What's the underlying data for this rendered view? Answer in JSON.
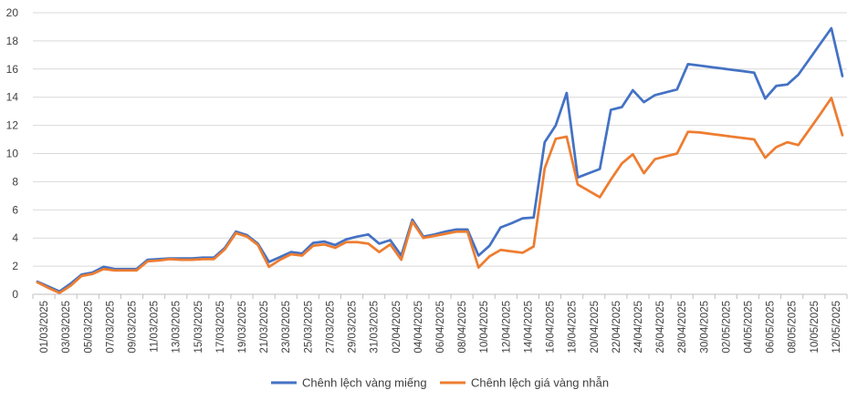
{
  "chart_data": {
    "type": "line",
    "title": "",
    "xlabel": "",
    "ylabel": "",
    "ylim": [
      0,
      20
    ],
    "yticks": [
      0,
      2,
      4,
      6,
      8,
      10,
      12,
      14,
      16,
      18,
      20
    ],
    "grid": "horizontal",
    "legend_position": "bottom",
    "xtick_labels": [
      "01/03/2025",
      "03/03/2025",
      "05/03/2025",
      "07/03/2025",
      "09/03/2025",
      "11/03/2025",
      "13/03/2025",
      "15/03/2025",
      "17/03/2025",
      "19/03/2025",
      "21/03/2025",
      "23/03/2025",
      "25/03/2025",
      "27/03/2025",
      "29/03/2025",
      "31/03/2025",
      "02/04/2025",
      "04/04/2025",
      "06/04/2025",
      "08/04/2025",
      "10/04/2025",
      "12/04/2025",
      "14/04/2025",
      "16/04/2025",
      "18/04/2025",
      "20/04/2025",
      "22/04/2025",
      "24/04/2025",
      "26/04/2025",
      "28/04/2025",
      "30/04/2025",
      "02/05/2025",
      "04/05/2025",
      "06/05/2025",
      "08/05/2025",
      "10/05/2025",
      "12/05/2025"
    ],
    "x": [
      "01/03",
      "02/03",
      "03/03",
      "04/03",
      "05/03",
      "06/03",
      "07/03",
      "08/03",
      "09/03",
      "10/03",
      "11/03",
      "12/03",
      "13/03",
      "14/03",
      "15/03",
      "16/03",
      "17/03",
      "18/03",
      "19/03",
      "20/03",
      "21/03",
      "22/03",
      "23/03",
      "24/03",
      "25/03",
      "26/03",
      "27/03",
      "28/03",
      "29/03",
      "30/03",
      "31/03",
      "01/04",
      "02/04",
      "03/04",
      "04/04",
      "05/04",
      "06/04",
      "07/04",
      "08/04",
      "09/04",
      "10/04",
      "11/04",
      "12/04",
      "13/04",
      "14/04",
      "15/04",
      "16/04",
      "17/04",
      "18/04",
      "19/04",
      "20/04",
      "21/04",
      "22/04",
      "23/04",
      "24/04",
      "25/04",
      "26/04",
      "27/04",
      "28/04",
      "29/04",
      "30/04",
      "01/05",
      "02/05",
      "03/05",
      "04/05",
      "05/05",
      "06/05",
      "07/05",
      "08/05",
      "09/05",
      "10/05",
      "11/05",
      "12/05",
      "13/05"
    ],
    "series": [
      {
        "name": "Chênh lệch vàng miếng",
        "color": "#4472C4",
        "values": [
          0.9,
          0.55,
          0.2,
          0.75,
          1.4,
          1.55,
          1.95,
          1.8,
          1.8,
          1.8,
          2.45,
          2.5,
          2.55,
          2.55,
          2.55,
          2.6,
          2.6,
          3.3,
          4.45,
          4.2,
          3.6,
          2.3,
          2.65,
          3.0,
          2.9,
          3.65,
          3.75,
          3.5,
          3.9,
          4.1,
          4.25,
          3.6,
          3.85,
          2.75,
          5.3,
          4.1,
          4.25,
          4.45,
          4.6,
          4.6,
          2.75,
          3.45,
          4.75,
          5.05,
          5.4,
          5.45,
          10.8,
          12.0,
          14.3,
          8.3,
          8.6,
          8.9,
          13.1,
          13.3,
          14.5,
          13.65,
          14.15,
          14.35,
          14.55,
          16.35,
          16.25,
          16.15,
          16.05,
          15.95,
          15.85,
          15.75,
          13.9,
          14.8,
          14.9,
          15.6,
          16.7,
          17.8,
          18.9,
          15.5
        ]
      },
      {
        "name": "Chênh lệch giá vàng nhẫn",
        "color": "#ED7D31",
        "values": [
          0.85,
          0.45,
          0.1,
          0.6,
          1.3,
          1.45,
          1.8,
          1.7,
          1.7,
          1.7,
          2.35,
          2.4,
          2.5,
          2.45,
          2.45,
          2.5,
          2.5,
          3.2,
          4.35,
          4.1,
          3.5,
          1.95,
          2.45,
          2.85,
          2.75,
          3.45,
          3.55,
          3.3,
          3.7,
          3.7,
          3.6,
          3.0,
          3.55,
          2.45,
          5.15,
          4.0,
          4.15,
          4.3,
          4.45,
          4.45,
          1.9,
          2.7,
          3.15,
          3.05,
          2.95,
          3.4,
          8.95,
          11.05,
          11.2,
          7.8,
          7.35,
          6.9,
          8.15,
          9.3,
          9.95,
          8.6,
          9.6,
          9.8,
          10.0,
          11.55,
          11.5,
          11.4,
          11.3,
          11.2,
          11.1,
          11.0,
          9.7,
          10.45,
          10.8,
          10.6,
          11.7,
          12.8,
          13.95,
          11.3
        ]
      }
    ]
  }
}
